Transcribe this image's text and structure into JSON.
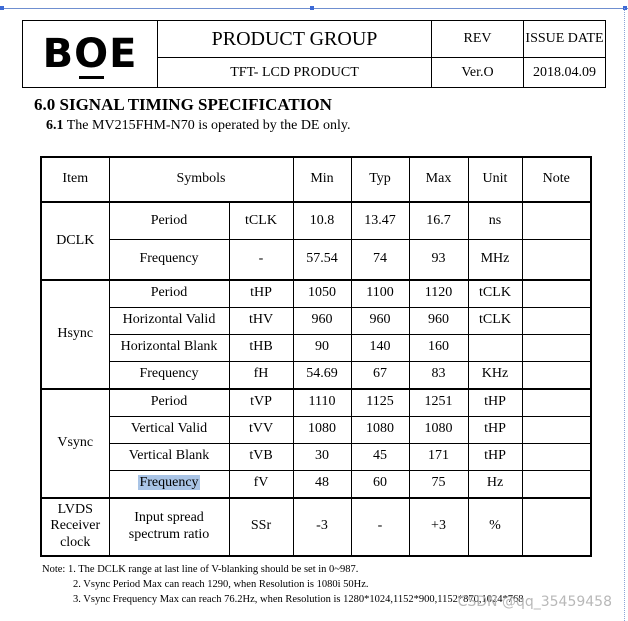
{
  "header": {
    "logo_text": "BOE",
    "product_group": "PRODUCT GROUP",
    "product_line": "TFT- LCD PRODUCT",
    "rev_label": "REV",
    "rev_value": "Ver.O",
    "issue_date_label": "ISSUE DATE",
    "issue_date_value": "2018.04.09"
  },
  "section": {
    "title": "6.0 SIGNAL TIMING SPECIFICATION",
    "sub_number": "6.1",
    "sub_text": "The MV215FHM-N70 is operated by the DE only."
  },
  "table": {
    "columns": [
      "Item",
      "Symbols",
      "Min",
      "Typ",
      "Max",
      "Unit",
      "Note"
    ],
    "groups": [
      {
        "item": "DCLK",
        "rows": [
          {
            "name": "Period",
            "symbol": "tCLK",
            "min": "10.8",
            "typ": "13.47",
            "max": "16.7",
            "unit": "ns",
            "note": ""
          },
          {
            "name": "Frequency",
            "symbol": "-",
            "min": "57.54",
            "typ": "74",
            "max": "93",
            "unit": "MHz",
            "note": ""
          }
        ]
      },
      {
        "item": "Hsync",
        "rows": [
          {
            "name": "Period",
            "symbol": "tHP",
            "min": "1050",
            "typ": "1100",
            "max": "1120",
            "unit": "tCLK",
            "note": ""
          },
          {
            "name": "Horizontal Valid",
            "symbol": "tHV",
            "min": "960",
            "typ": "960",
            "max": "960",
            "unit": "tCLK",
            "note": ""
          },
          {
            "name": "Horizontal Blank",
            "symbol": "tHB",
            "min": "90",
            "typ": "140",
            "max": "160",
            "unit": "",
            "note": ""
          },
          {
            "name": "Frequency",
            "symbol": "fH",
            "min": "54.69",
            "typ": "67",
            "max": "83",
            "unit": "KHz",
            "note": ""
          }
        ]
      },
      {
        "item": "Vsync",
        "rows": [
          {
            "name": "Period",
            "symbol": "tVP",
            "min": "1110",
            "typ": "1125",
            "max": "1251",
            "unit": "tHP",
            "note": ""
          },
          {
            "name": "Vertical Valid",
            "symbol": "tVV",
            "min": "1080",
            "typ": "1080",
            "max": "1080",
            "unit": "tHP",
            "note": ""
          },
          {
            "name": "Vertical Blank",
            "symbol": "tVB",
            "min": "30",
            "typ": "45",
            "max": "171",
            "unit": "tHP",
            "note": ""
          },
          {
            "name": "Frequency",
            "symbol": "fV",
            "min": "48",
            "typ": "60",
            "max": "75",
            "unit": "Hz",
            "note": ""
          }
        ]
      },
      {
        "item_lines": [
          "LVDS",
          "Receiver",
          "clock"
        ],
        "rows": [
          {
            "name_lines": [
              "Input spread",
              "spectrum ratio"
            ],
            "symbol": "SSr",
            "min": "-3",
            "typ": "-",
            "max": "+3",
            "unit": "%",
            "note": ""
          }
        ]
      }
    ]
  },
  "notes": [
    "Note: 1. The DCLK range at last line of V-blanking should be set in 0~987.",
    "2. Vsync Period Max can reach 1290, when Resolution is 1080i 50Hz.",
    "3. Vsync Frequency Max can reach 76.2Hz, when Resolution is 1280*1024,1152*900,1152*870,1024*768"
  ],
  "watermark": "CSDN @qq_35459458",
  "highlight_color": "#a9c4e6"
}
